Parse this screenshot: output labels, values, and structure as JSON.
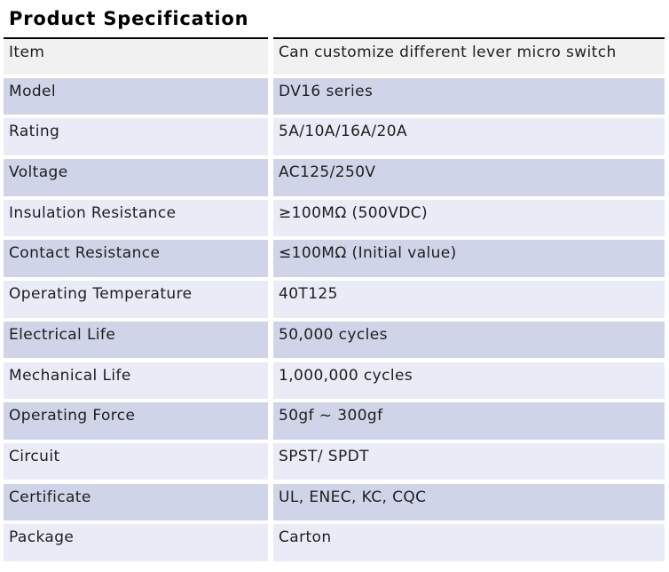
{
  "page": {
    "title": "Product Specification"
  },
  "table": {
    "rows": [
      {
        "label": "Item",
        "value": "Can customize different lever micro switch"
      },
      {
        "label": "Model",
        "value": "DV16 series"
      },
      {
        "label": "Rating",
        "value": "5A/10A/16A/20A"
      },
      {
        "label": "Voltage",
        "value": "AC125/250V"
      },
      {
        "label": "Insulation Resistance",
        "value": "≥100MΩ (500VDC)"
      },
      {
        "label": "Contact Resistance",
        "value": "≤100MΩ (Initial value)"
      },
      {
        "label": "Operating Temperature",
        "value": "40T125"
      },
      {
        "label": "Electrical Life",
        "value": "50,000 cycles"
      },
      {
        "label": "Mechanical Life",
        "value": "1,000,000 cycles"
      },
      {
        "label": "Operating Force",
        "value": "50gf ~ 300gf"
      },
      {
        "label": "Circuit",
        "value": "SPST/ SPDT"
      },
      {
        "label": "Certificate",
        "value": "UL, ENEC, KC, CQC"
      },
      {
        "label": "Package",
        "value": "Carton"
      }
    ],
    "colors": {
      "header_row_bg": "#f1f1f1",
      "row_dark_bg": "#d0d4e8",
      "row_light_bg": "#e9ebf7",
      "top_border": "#000000",
      "text": "#1e1e1e"
    }
  }
}
